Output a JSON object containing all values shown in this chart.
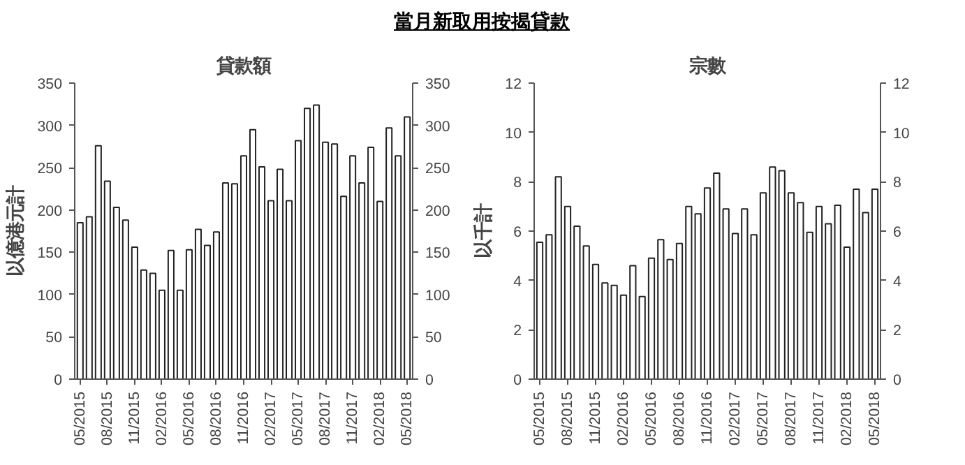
{
  "chart_data": [
    {
      "type": "bar",
      "title": "當月新取用按揭貸款",
      "subtitle": "貸款額",
      "ylabel": "以億港元計",
      "categories": [
        "05/2015",
        null,
        null,
        "08/2015",
        null,
        null,
        "11/2015",
        null,
        null,
        "02/2016",
        null,
        null,
        "05/2016",
        null,
        null,
        "08/2016",
        null,
        null,
        "11/2016",
        null,
        null,
        "02/2017",
        null,
        null,
        "05/2017",
        null,
        null,
        "08/2017",
        null,
        null,
        "11/2017",
        null,
        null,
        "02/2018",
        null,
        null,
        "05/2018"
      ],
      "series": [
        {
          "color": "#ffffff",
          "values": [
            185,
            192,
            276,
            234,
            203,
            188,
            156,
            129,
            125,
            105,
            152,
            105,
            153,
            177,
            158,
            174,
            232,
            231,
            264,
            295,
            251,
            211,
            248,
            211,
            282,
            320,
            324,
            280,
            278,
            216,
            264,
            232,
            274,
            210,
            297,
            264,
            310
          ]
        }
      ],
      "ylim": [
        0,
        350
      ],
      "yticks": [
        0,
        50,
        100,
        150,
        200,
        250,
        300,
        350
      ],
      "y2lim": [
        0,
        350
      ],
      "y2ticks": [
        0,
        50,
        100,
        150,
        200,
        250,
        300,
        350
      ],
      "grid": false
    },
    {
      "type": "bar",
      "title": "宗數",
      "ylabel": "以千計",
      "categories": [
        "05/2015",
        null,
        null,
        "08/2015",
        null,
        null,
        "11/2015",
        null,
        null,
        "02/2016",
        null,
        null,
        "05/2016",
        null,
        null,
        "08/2016",
        null,
        null,
        "11/2016",
        null,
        null,
        "02/2017",
        null,
        null,
        "05/2017",
        null,
        null,
        "08/2017",
        null,
        null,
        "11/2017",
        null,
        null,
        "02/2018",
        null,
        null,
        "05/2018"
      ],
      "series": [
        {
          "color": "#ffffff",
          "values": [
            5.55,
            5.85,
            8.2,
            7.0,
            6.2,
            5.4,
            4.65,
            3.9,
            3.8,
            3.4,
            4.6,
            3.35,
            4.9,
            5.65,
            4.85,
            5.5,
            7.0,
            6.7,
            7.75,
            8.35,
            6.9,
            5.9,
            6.9,
            5.85,
            7.55,
            8.6,
            8.45,
            7.55,
            7.15,
            5.95,
            7.0,
            6.3,
            7.05,
            5.35,
            7.7,
            6.75,
            7.7
          ]
        }
      ],
      "ylim": [
        0,
        12
      ],
      "yticks": [
        0,
        2,
        4,
        6,
        8,
        10,
        12
      ],
      "y2lim": [
        0,
        12
      ],
      "y2ticks": [
        0,
        2,
        4,
        6,
        8,
        10,
        12
      ],
      "grid": false
    }
  ]
}
